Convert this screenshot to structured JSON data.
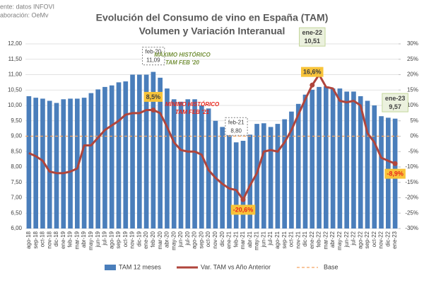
{
  "chart_data": {
    "type": "bar-line",
    "title": "Evolución del Consumo de vino en España (TAM)",
    "subtitle": "Volumen y Variación Interanual",
    "source": [
      "ente: datos INFOVI",
      "aboración: OeMv"
    ],
    "annotations": [
      {
        "lines": [
          "MÁXIMO HISTÓRICO",
          "TAM FEB '20"
        ],
        "color": "#76923c"
      },
      {
        "lines": [
          "MÍNIMO HISTÓRICO",
          "TAM FEB '21"
        ],
        "color": "#e8261c"
      }
    ],
    "categories": [
      "ago-18",
      "sep-18",
      "oct-18",
      "nov-18",
      "dic-18",
      "ene-19",
      "feb-19",
      "mar-19",
      "abr-19",
      "may-19",
      "jun-19",
      "jul-19",
      "ago-19",
      "sep-19",
      "oct-19",
      "nov-19",
      "dic-19",
      "ene-20",
      "feb-20",
      "mar-20",
      "abr-20",
      "may-20",
      "jun-20",
      "jul-20",
      "ago-20",
      "sep-20",
      "oct-20",
      "nov-20",
      "dic-20",
      "ene-21",
      "feb-21",
      "mar-21",
      "abr-21",
      "may-21",
      "jun-21",
      "jul-21",
      "ago-21",
      "sep-21",
      "oct-21",
      "nov-21",
      "dic-21",
      "ene-22",
      "feb-22",
      "mar-22",
      "abr-22",
      "may-22",
      "jun-22",
      "jul-22",
      "ago-22",
      "sep-22",
      "oct-22",
      "nov-22",
      "dic-22",
      "ene-23"
    ],
    "series": [
      {
        "name": "TAM 12 meses",
        "color": "#4a7ebb",
        "axis": "y",
        "values": [
          10.3,
          10.25,
          10.22,
          10.15,
          10.08,
          10.2,
          10.22,
          10.22,
          10.25,
          10.4,
          10.52,
          10.6,
          10.65,
          10.75,
          10.78,
          11.0,
          11.0,
          11.0,
          11.09,
          10.9,
          10.55,
          10.2,
          10.12,
          10.2,
          10.2,
          10.0,
          9.9,
          9.5,
          9.3,
          9.15,
          8.8,
          8.85,
          9.05,
          9.4,
          9.42,
          9.3,
          9.4,
          9.55,
          9.8,
          10.05,
          10.35,
          10.51,
          10.6,
          10.62,
          10.55,
          10.55,
          10.45,
          10.45,
          10.3,
          10.15,
          10.0,
          9.65,
          9.6,
          9.57
        ],
        "value_labels": [
          null,
          null,
          null,
          null,
          null,
          null,
          null,
          null,
          null,
          null,
          null,
          null,
          null,
          null,
          null,
          null,
          null,
          null,
          "11,09",
          null,
          null,
          null,
          null,
          null,
          null,
          null,
          null,
          null,
          null,
          null,
          "8,80",
          null,
          null,
          null,
          null,
          null,
          null,
          null,
          null,
          null,
          null,
          "10,51",
          null,
          null,
          null,
          null,
          null,
          null,
          null,
          null,
          null,
          null,
          null,
          "9,57"
        ]
      },
      {
        "name": "Var. TAM vs Año Anterior",
        "color": "#b0453c",
        "axis": "y2",
        "values": [
          -5.5,
          -6.5,
          -8,
          -11.5,
          -12,
          -12,
          -11.5,
          -10.5,
          -3,
          -3,
          -0.5,
          2,
          3.5,
          5,
          7,
          7.5,
          7.5,
          8.5,
          8.5,
          7.5,
          3,
          -2,
          -4.5,
          -5,
          -5,
          -6,
          -11,
          -13.5,
          -15.5,
          -17,
          -17.5,
          -20.6,
          -16,
          -12,
          -5,
          -4.5,
          -5,
          -2,
          2,
          7,
          12,
          16.6,
          20,
          16,
          15.5,
          11.5,
          11,
          11.5,
          10,
          1,
          -2,
          -7,
          -8,
          -8.9
        ],
        "value_labels": [
          null,
          null,
          null,
          null,
          null,
          null,
          null,
          null,
          null,
          null,
          null,
          null,
          null,
          null,
          null,
          null,
          null,
          null,
          "8,5%",
          null,
          null,
          null,
          null,
          null,
          null,
          null,
          null,
          null,
          null,
          null,
          null,
          "-20,6%",
          null,
          null,
          null,
          null,
          null,
          null,
          null,
          null,
          null,
          "16,6%",
          null,
          null,
          null,
          null,
          null,
          null,
          null,
          null,
          null,
          null,
          null,
          "-8,9%"
        ]
      }
    ],
    "base": {
      "name": "Base",
      "color": "#f4a460",
      "value": 0,
      "axis": "y2"
    },
    "ylim": [
      6,
      12
    ],
    "yticks": [
      {
        "value": 6,
        "label": "6,00"
      },
      {
        "value": 6.5,
        "label": "6,50"
      },
      {
        "value": 7,
        "label": "7,00"
      },
      {
        "value": 7.5,
        "label": "7,50"
      },
      {
        "value": 8,
        "label": "8,00"
      },
      {
        "value": 8.5,
        "label": "8,50"
      },
      {
        "value": 9,
        "label": "9,00"
      },
      {
        "value": 9.5,
        "label": "9,50"
      },
      {
        "value": 10,
        "label": "10,00"
      },
      {
        "value": 10.5,
        "label": "10,50"
      },
      {
        "value": 11,
        "label": "11,00"
      },
      {
        "value": 11.5,
        "label": "11,50"
      },
      {
        "value": 12,
        "label": "12,00"
      }
    ],
    "y2lim": [
      -30,
      30
    ],
    "y2ticks": [
      {
        "value": -30,
        "label": "-30%"
      },
      {
        "value": -25,
        "label": "-25%"
      },
      {
        "value": -20,
        "label": "-20%"
      },
      {
        "value": -15,
        "label": "-15%"
      },
      {
        "value": -10,
        "label": "-10%"
      },
      {
        "value": -5,
        "label": "-5%"
      },
      {
        "value": 0,
        "label": "0%"
      },
      {
        "value": 5,
        "label": "5%"
      },
      {
        "value": 10,
        "label": "10%"
      },
      {
        "value": 15,
        "label": "15%"
      },
      {
        "value": 20,
        "label": "20%"
      },
      {
        "value": 25,
        "label": "25%"
      },
      {
        "value": 30,
        "label": "30%"
      }
    ],
    "grid": true
  }
}
